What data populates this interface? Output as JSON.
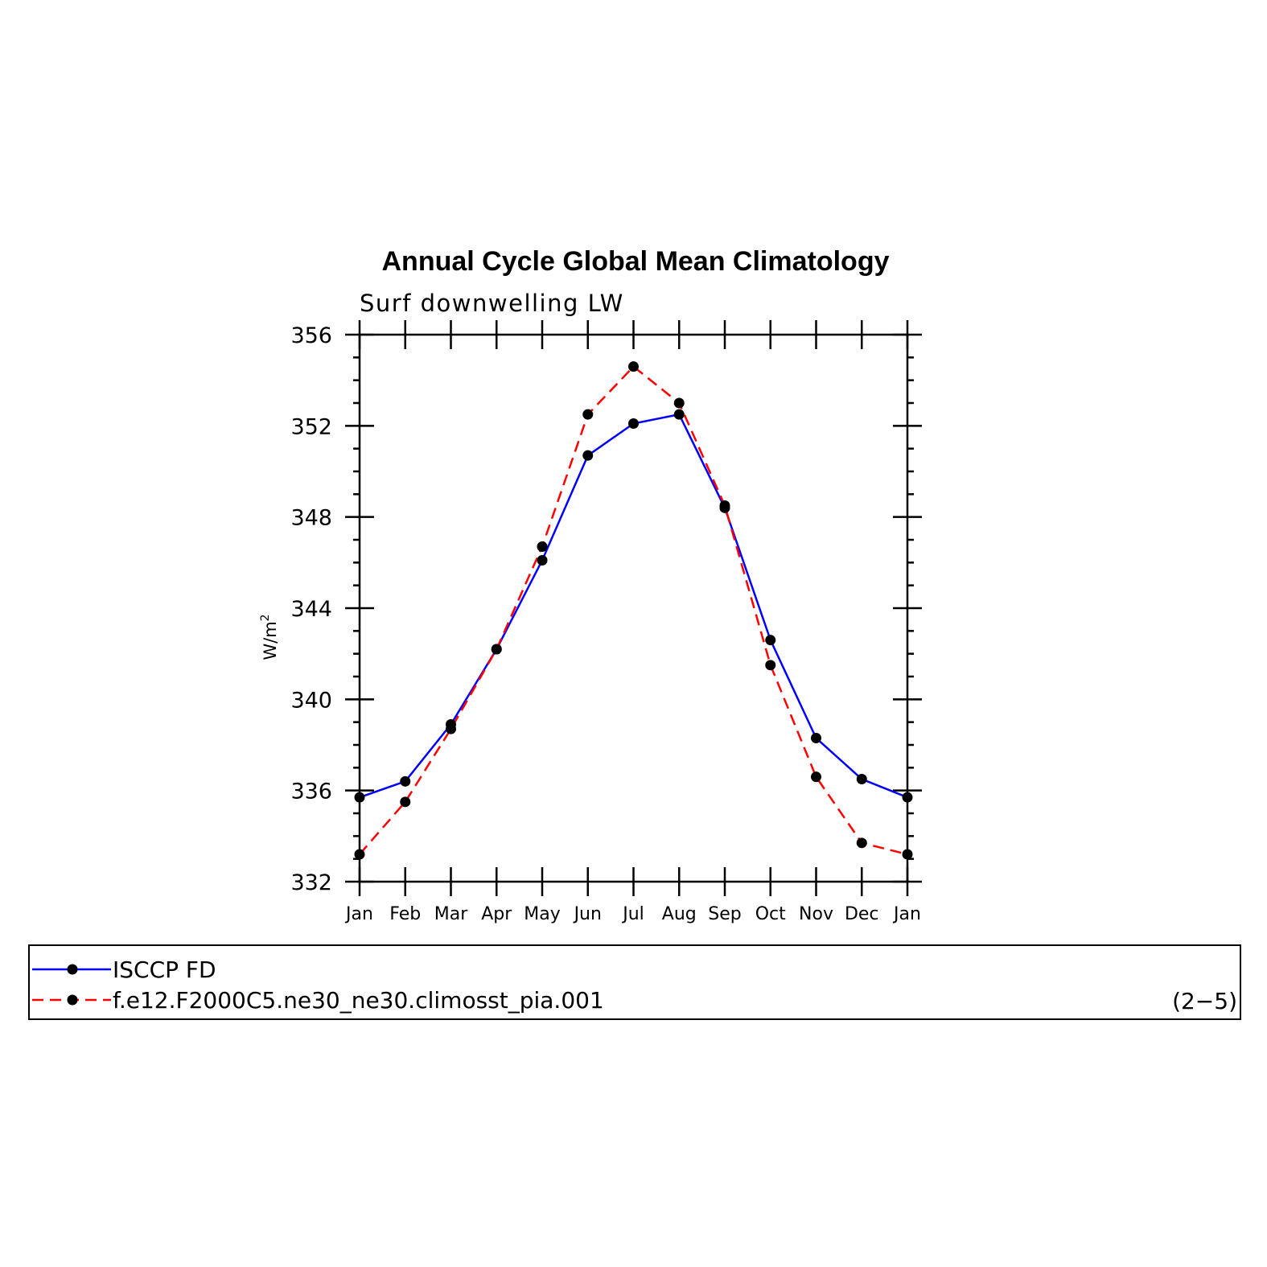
{
  "chart_data": {
    "type": "line",
    "title": "Annual Cycle Global Mean Climatology",
    "subtitle": "Surf downwelling LW",
    "ylabel": "W/m",
    "ylabel_sup": "2",
    "xlabel": "",
    "categories": [
      "Jan",
      "Feb",
      "Mar",
      "Apr",
      "May",
      "Jun",
      "Jul",
      "Aug",
      "Sep",
      "Oct",
      "Nov",
      "Dec",
      "Jan"
    ],
    "ylim": [
      332,
      356
    ],
    "yticks": [
      332,
      336,
      340,
      344,
      348,
      352,
      356
    ],
    "grid": false,
    "legend_position": "bottom",
    "panel_label": "(2−5)",
    "series": [
      {
        "name": "ISCCP FD",
        "color": "#0000ff",
        "dash": "solid",
        "values": [
          335.7,
          336.4,
          338.9,
          342.2,
          346.1,
          350.7,
          352.1,
          352.5,
          348.4,
          342.6,
          338.3,
          336.5,
          335.7
        ]
      },
      {
        "name": "f.e12.F2000C5.ne30_ne30.climosst_pia.001",
        "color": "#ff0000",
        "dash": "dashed",
        "values": [
          333.2,
          335.5,
          338.7,
          342.2,
          346.7,
          352.5,
          354.6,
          353.0,
          348.5,
          341.5,
          336.6,
          333.7,
          333.2
        ]
      }
    ]
  }
}
